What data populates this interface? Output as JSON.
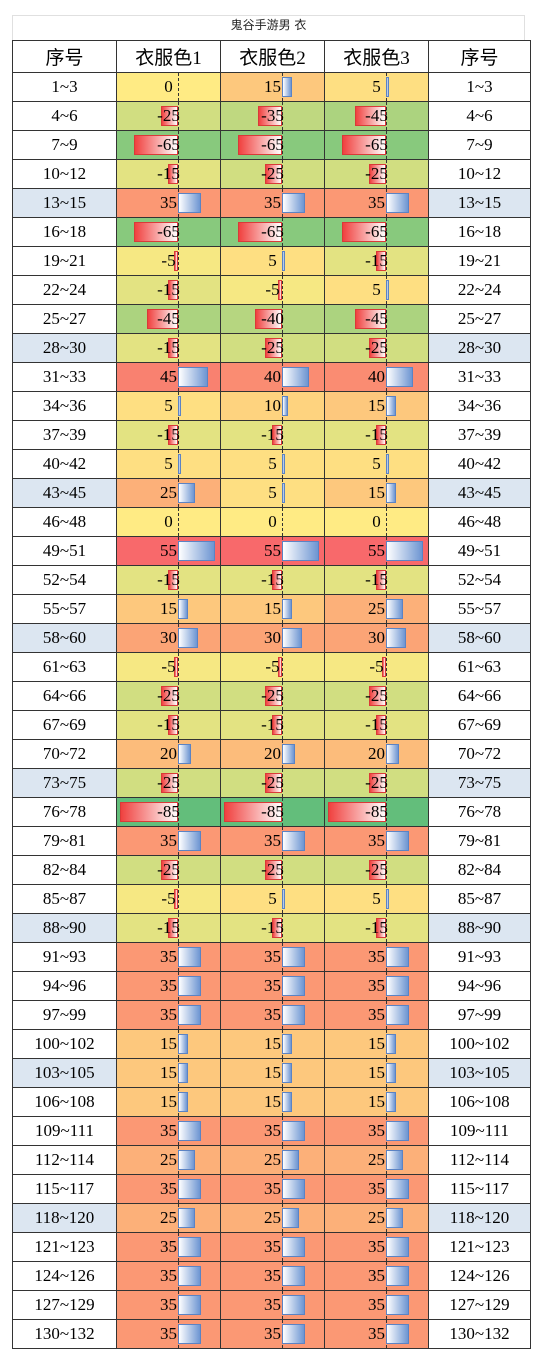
{
  "title": "鬼谷手游男 衣",
  "table": {
    "headers": [
      "序号",
      "衣服色1",
      "衣服色2",
      "衣服色3",
      "序号"
    ],
    "rows": [
      [
        "1~3",
        0,
        15,
        5
      ],
      [
        "4~6",
        -25,
        -35,
        -45
      ],
      [
        "7~9",
        -65,
        -65,
        -65
      ],
      [
        "10~12",
        -15,
        -25,
        -25
      ],
      [
        "13~15",
        35,
        35,
        35
      ],
      [
        "16~18",
        -65,
        -65,
        -65
      ],
      [
        "19~21",
        -5,
        5,
        -15
      ],
      [
        "22~24",
        -15,
        -5,
        5
      ],
      [
        "25~27",
        -45,
        -40,
        -45
      ],
      [
        "28~30",
        -15,
        -25,
        -25
      ],
      [
        "31~33",
        45,
        40,
        40
      ],
      [
        "34~36",
        5,
        10,
        15
      ],
      [
        "37~39",
        -15,
        -15,
        -15
      ],
      [
        "40~42",
        5,
        5,
        5
      ],
      [
        "43~45",
        25,
        5,
        15
      ],
      [
        "46~48",
        0,
        0,
        0
      ],
      [
        "49~51",
        55,
        55,
        55
      ],
      [
        "52~54",
        -15,
        -15,
        -15
      ],
      [
        "55~57",
        15,
        15,
        25
      ],
      [
        "58~60",
        30,
        30,
        30
      ],
      [
        "61~63",
        -5,
        -5,
        -5
      ],
      [
        "64~66",
        -25,
        -25,
        -25
      ],
      [
        "67~69",
        -15,
        -15,
        -15
      ],
      [
        "70~72",
        20,
        20,
        20
      ],
      [
        "73~75",
        -25,
        -25,
        -25
      ],
      [
        "76~78",
        -85,
        -85,
        -85
      ],
      [
        "79~81",
        35,
        35,
        35
      ],
      [
        "82~84",
        -25,
        -25,
        -25
      ],
      [
        "85~87",
        -5,
        5,
        5
      ],
      [
        "88~90",
        -15,
        -15,
        -15
      ],
      [
        "91~93",
        35,
        35,
        35
      ],
      [
        "94~96",
        35,
        35,
        35
      ],
      [
        "97~99",
        35,
        35,
        35
      ],
      [
        "100~102",
        15,
        15,
        15
      ],
      [
        "103~105",
        15,
        15,
        15
      ],
      [
        "106~108",
        15,
        15,
        15
      ],
      [
        "109~111",
        35,
        35,
        35
      ],
      [
        "112~114",
        25,
        25,
        25
      ],
      [
        "115~117",
        35,
        35,
        35
      ],
      [
        "118~120",
        25,
        25,
        25
      ],
      [
        "121~123",
        35,
        35,
        35
      ],
      [
        "124~126",
        35,
        35,
        35
      ],
      [
        "127~129",
        35,
        35,
        35
      ],
      [
        "130~132",
        35,
        35,
        35
      ]
    ]
  }
}
